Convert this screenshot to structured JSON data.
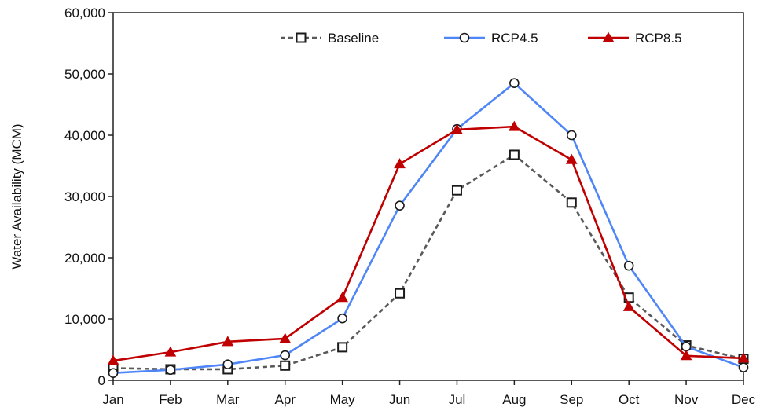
{
  "chart_data": {
    "type": "line",
    "title": "",
    "xlabel": "",
    "ylabel": "Water Availability (MCM)",
    "ylim": [
      0,
      60000
    ],
    "y_ticks": [
      0,
      10000,
      20000,
      30000,
      40000,
      50000,
      60000
    ],
    "y_tick_labels": [
      "0",
      "10,000",
      "20,000",
      "30,000",
      "40,000",
      "50,000",
      "60,000"
    ],
    "categories": [
      "Jan",
      "Feb",
      "Mar",
      "Apr",
      "May",
      "Jun",
      "Jul",
      "Aug",
      "Sep",
      "Oct",
      "Nov",
      "Dec"
    ],
    "grid": false,
    "legend_position": "top",
    "series": [
      {
        "name": "Baseline",
        "color": "#595959",
        "marker": "square-open",
        "line": "dashed",
        "values": [
          2000,
          1800,
          1800,
          2400,
          5400,
          14200,
          31000,
          36800,
          29000,
          13500,
          5700,
          3500
        ]
      },
      {
        "name": "RCP4.5",
        "color": "#4f86f7",
        "marker": "circle-open",
        "line": "solid",
        "values": [
          1200,
          1700,
          2600,
          4100,
          10100,
          28500,
          41000,
          48500,
          40000,
          18700,
          5500,
          2100
        ]
      },
      {
        "name": "RCP8.5",
        "color": "#c00000",
        "marker": "triangle-filled",
        "line": "solid",
        "values": [
          3200,
          4600,
          6300,
          6800,
          13500,
          35300,
          40900,
          41400,
          36000,
          12000,
          4000,
          3600
        ]
      }
    ]
  }
}
